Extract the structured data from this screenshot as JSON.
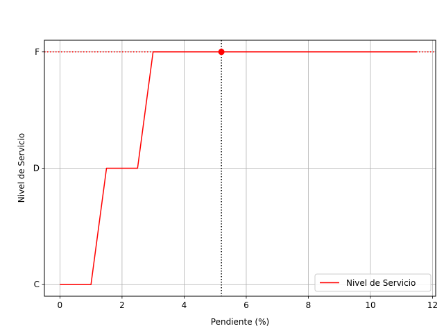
{
  "chart_data": {
    "type": "line",
    "title": "",
    "xlabel": "Pendiente (%)",
    "ylabel": "Nivel de Servicio",
    "xlim": [
      -0.5,
      12.1
    ],
    "ylim": [
      -0.1,
      2.1
    ],
    "x_ticks": [
      0,
      2,
      4,
      6,
      8,
      10,
      12
    ],
    "y_ticks": [
      {
        "value": 0,
        "label": "C"
      },
      {
        "value": 1,
        "label": "D"
      },
      {
        "value": 2,
        "label": "F"
      }
    ],
    "grid": true,
    "legend_position": "lower-right",
    "series": [
      {
        "name": "Nivel de Servicio",
        "color": "#ff0000",
        "x": [
          0,
          1,
          1.5,
          2.5,
          3,
          11.5
        ],
        "y": [
          0,
          0,
          1,
          1,
          2,
          2
        ]
      }
    ],
    "reference_lines": {
      "vertical_x": 5.2,
      "vertical_color": "#000000",
      "horizontal_y": 2,
      "horizontal_color": "#ff0000"
    },
    "highlight_point": {
      "x": 5.2,
      "y": 2,
      "color": "#ff0000"
    }
  }
}
